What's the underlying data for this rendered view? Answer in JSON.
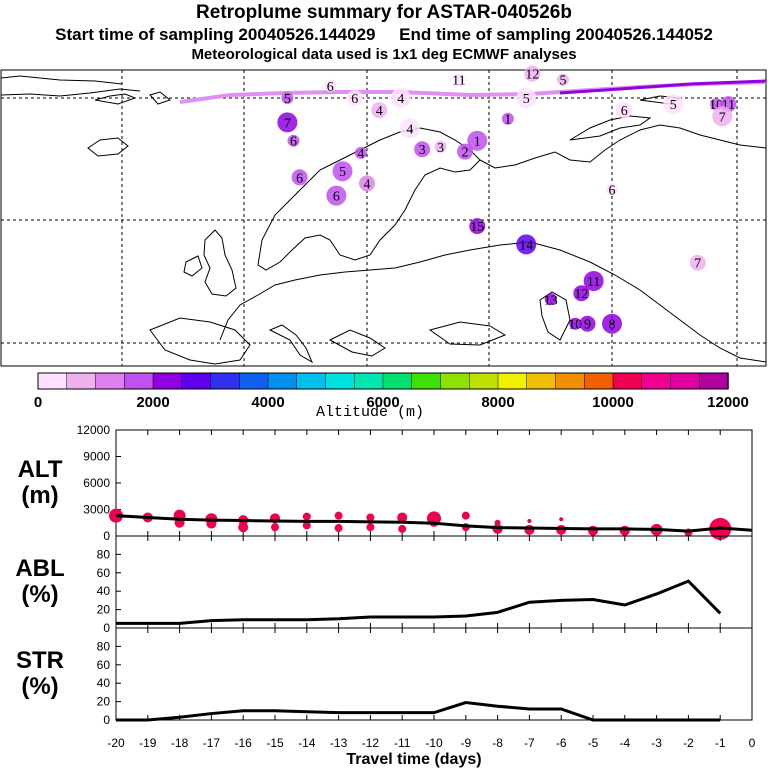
{
  "header": {
    "title": "Retroplume summary for ASTAR-040526b",
    "sampling": "Start time of sampling 20040526.144029     End time of sampling 20040526.144052",
    "met": "Meteorological data used is 1x1 deg ECMWF analyses"
  },
  "colorbar": {
    "label": "Altitude (m)",
    "ticks": [
      "0",
      "2000",
      "4000",
      "6000",
      "8000",
      "10000",
      "12000"
    ],
    "colors": [
      "#ffe0ff",
      "#f0b0f0",
      "#e080f0",
      "#c050f0",
      "#9000e0",
      "#6000f0",
      "#3030f0",
      "#1060f0",
      "#0090f0",
      "#00c0f0",
      "#00e0e0",
      "#00e8b0",
      "#00e070",
      "#40e000",
      "#90e000",
      "#c0e000",
      "#f0f000",
      "#f0c000",
      "#f09000",
      "#f06000",
      "#f00050",
      "#f00090",
      "#e000a0",
      "#b000a0"
    ]
  },
  "map": {
    "day_labels": [
      {
        "t": "10",
        "lon": -15,
        "lat": 82.5,
        "alt": 1600
      },
      {
        "t": "4",
        "lon": 2,
        "lat": 79,
        "alt": 600
      },
      {
        "t": "4",
        "lon": 7,
        "lat": 77.5,
        "alt": 300
      },
      {
        "t": "3",
        "lon": 12,
        "lat": 76,
        "alt": 900
      },
      {
        "t": "2",
        "lon": 16,
        "lat": 75.6,
        "alt": 1500
      },
      {
        "t": "1",
        "lon": 18,
        "lat": 76.5,
        "alt": 1500
      },
      {
        "t": "11",
        "lon": 15,
        "lat": 81.5,
        "alt": 300
      },
      {
        "t": "12",
        "lon": 27,
        "lat": 82,
        "alt": 700
      },
      {
        "t": "5",
        "lon": 26,
        "lat": 80,
        "alt": 300
      },
      {
        "t": "5",
        "lon": 32,
        "lat": 81.5,
        "alt": 500
      },
      {
        "t": "6",
        "lon": 42,
        "lat": 79,
        "alt": 300
      },
      {
        "t": "5",
        "lon": 50,
        "lat": 79.5,
        "alt": 300
      },
      {
        "t": "10",
        "lon": 57,
        "lat": 79.5,
        "alt": 1700
      },
      {
        "t": "11",
        "lon": 59,
        "lat": 79.5,
        "alt": 1500
      },
      {
        "t": "7",
        "lon": 58,
        "lat": 78.5,
        "alt": 600
      },
      {
        "t": "6",
        "lon": 68,
        "lat": 82,
        "alt": 900
      },
      {
        "t": "12",
        "lon": 69,
        "lat": 80,
        "alt": 1900
      },
      {
        "t": "8",
        "lon": 72,
        "lat": 79.3,
        "alt": 2000
      },
      {
        "t": "9",
        "lon": 74,
        "lat": 79.3,
        "alt": 2200
      },
      {
        "t": "7",
        "lon": 82,
        "lat": 82,
        "alt": 300
      },
      {
        "t": "1",
        "lon": 86,
        "lat": 82,
        "alt": 300
      },
      {
        "t": "6",
        "lon": 40,
        "lat": 72.5,
        "alt": 300
      },
      {
        "t": "7",
        "lon": 54,
        "lat": 66.5,
        "alt": 800
      },
      {
        "t": "10",
        "lon": 68,
        "lat": 72,
        "alt": 1800
      },
      {
        "t": "14",
        "lon": 74,
        "lat": 70.5,
        "alt": 1900
      },
      {
        "t": "13",
        "lon": 84,
        "lat": 77,
        "alt": 2000
      },
      {
        "t": "11",
        "lon": 86,
        "lat": 76,
        "alt": 2100
      },
      {
        "t": "8",
        "lon": 85,
        "lat": 69.5,
        "alt": 1300
      },
      {
        "t": "15",
        "lon": 18,
        "lat": 69.5,
        "alt": 2300
      },
      {
        "t": "14",
        "lon": 26,
        "lat": 68,
        "alt": 2500
      },
      {
        "t": "13",
        "lon": 30,
        "lat": 63.5,
        "alt": 2400
      },
      {
        "t": "12",
        "lon": 35,
        "lat": 64,
        "alt": 2000
      },
      {
        "t": "11",
        "lon": 37,
        "lat": 65,
        "alt": 2100
      },
      {
        "t": "10",
        "lon": 34,
        "lat": 61.5,
        "alt": 2300
      },
      {
        "t": "9",
        "lon": 36,
        "lat": 61.5,
        "alt": 2400
      },
      {
        "t": "8",
        "lon": 40,
        "lat": 61.5,
        "alt": 2200
      },
      {
        "t": "6",
        "lon": -6,
        "lat": 81,
        "alt": 300
      },
      {
        "t": "6",
        "lon": -2,
        "lat": 80,
        "alt": 300
      },
      {
        "t": "7",
        "lon": -13,
        "lat": 78,
        "alt": 2200
      },
      {
        "t": "6",
        "lon": -12,
        "lat": 76.5,
        "alt": 1800
      },
      {
        "t": "6",
        "lon": -11,
        "lat": 73.5,
        "alt": 1600
      },
      {
        "t": "5",
        "lon": -4,
        "lat": 74,
        "alt": 1600
      },
      {
        "t": "4",
        "lon": -1,
        "lat": 75.5,
        "alt": 1600
      },
      {
        "t": "4",
        "lon": 0,
        "lat": 73,
        "alt": 1000
      },
      {
        "t": "6",
        "lon": -5,
        "lat": 72,
        "alt": 1600
      },
      {
        "t": "5",
        "lon": -13,
        "lat": 80,
        "alt": 1500
      },
      {
        "t": "3",
        "lon": 9,
        "lat": 75.8,
        "alt": 1600
      },
      {
        "t": "4",
        "lon": 5.5,
        "lat": 80,
        "alt": 300
      },
      {
        "t": "1",
        "lon": 23,
        "lat": 78.3,
        "alt": 1800
      }
    ]
  },
  "chart_data": [
    {
      "type": "line",
      "panel": "ALT",
      "ylabel": "ALT\n(m)",
      "ylim": [
        0,
        12000
      ],
      "yticks": [
        0,
        3000,
        6000,
        9000,
        12000
      ],
      "x": [
        -20,
        -19,
        -18,
        -17,
        -16,
        -15,
        -14,
        -13,
        -12,
        -11,
        -10,
        -9,
        -8,
        -7,
        -6,
        -5,
        -4,
        -3,
        -2,
        -1,
        0
      ],
      "values": [
        2300,
        2100,
        1900,
        1800,
        1750,
        1700,
        1650,
        1650,
        1600,
        1550,
        1450,
        1150,
        950,
        900,
        850,
        800,
        800,
        750,
        550,
        900,
        650
      ],
      "scatter": {
        "x": [
          -20,
          -19,
          -18,
          -18,
          -17,
          -17,
          -16,
          -16,
          -15,
          -15,
          -14,
          -14,
          -13,
          -13,
          -12,
          -12,
          -11,
          -11,
          -10,
          -10,
          -9,
          -9,
          -8,
          -8,
          -7,
          -7,
          -6,
          -6,
          -5,
          -4,
          -3,
          -2,
          -1,
          -1
        ],
        "values": [
          2300,
          2100,
          2300,
          1500,
          1900,
          1400,
          1800,
          1000,
          2000,
          1000,
          2200,
          1200,
          2300,
          900,
          2100,
          1000,
          2100,
          800,
          2000,
          1600,
          2300,
          1000,
          800,
          1500,
          700,
          1700,
          700,
          1900,
          600,
          600,
          700,
          400,
          800,
          1100
        ],
        "sizes": [
          7,
          5,
          6,
          5,
          6,
          5,
          5,
          5,
          5,
          4,
          4,
          4,
          4,
          4,
          4,
          4,
          5,
          4,
          7,
          5,
          4,
          4,
          5,
          3,
          5,
          2,
          5,
          2,
          5,
          5,
          6,
          4,
          11,
          8
        ]
      }
    },
    {
      "type": "line",
      "panel": "ABL",
      "ylabel": "ABL\n(%)",
      "ylim": [
        0,
        100
      ],
      "yticks": [
        0,
        20,
        40,
        60,
        80
      ],
      "x": [
        -20,
        -19,
        -18,
        -17,
        -16,
        -15,
        -14,
        -13,
        -12,
        -11,
        -10,
        -9,
        -8,
        -7,
        -6,
        -5,
        -4,
        -3,
        -2,
        -1
      ],
      "values": [
        5,
        5,
        5,
        8,
        9,
        9,
        9,
        10,
        12,
        12,
        12,
        13,
        17,
        28,
        30,
        31,
        25,
        37,
        51,
        16
      ]
    },
    {
      "type": "line",
      "panel": "STR",
      "ylabel": "STR\n(%)",
      "ylim": [
        0,
        100
      ],
      "yticks": [
        0,
        20,
        40,
        60,
        80
      ],
      "x": [
        -20,
        -19,
        -18,
        -17,
        -16,
        -15,
        -14,
        -13,
        -12,
        -11,
        -10,
        -9,
        -8,
        -7,
        -6,
        -5,
        -4,
        -3,
        -2,
        -1
      ],
      "values": [
        0,
        0,
        3,
        7,
        10,
        10,
        9,
        8,
        8,
        8,
        8,
        19,
        15,
        12,
        12,
        0,
        0,
        0,
        0,
        0
      ],
      "xlabel": "Travel time (days)",
      "xticks": [
        -20,
        -19,
        -18,
        -17,
        -16,
        -15,
        -14,
        -13,
        -12,
        -11,
        -10,
        -9,
        -8,
        -7,
        -6,
        -5,
        -4,
        -3,
        -2,
        -1,
        0
      ]
    }
  ]
}
